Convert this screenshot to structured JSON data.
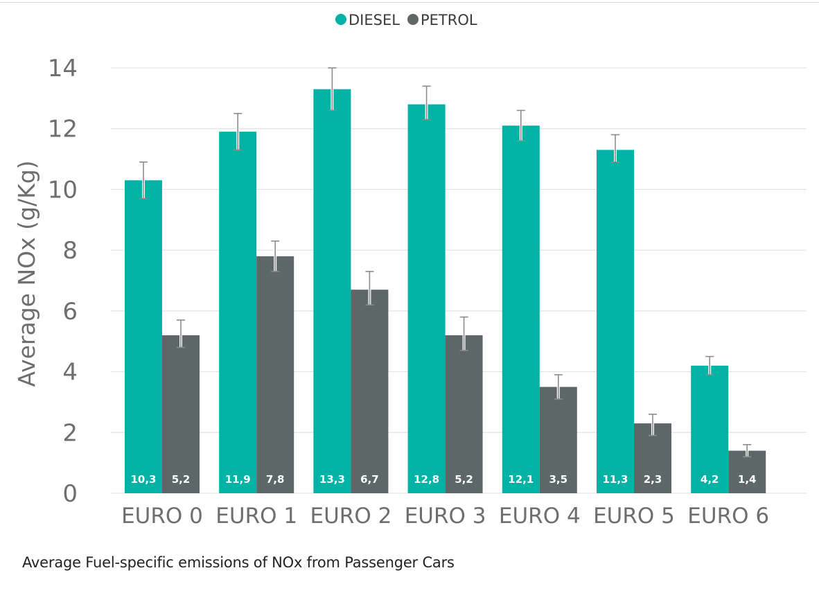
{
  "colors": {
    "diesel": "#00b3a4",
    "petrol": "#5e6767",
    "grid": "#e3e3e3",
    "axis_text": "#6e6e6e",
    "errorbar": "#8c8c8c",
    "data_label": "#ffffff",
    "caption": "#222222"
  },
  "chart_data": {
    "type": "bar",
    "categories": [
      "EURO 0",
      "EURO 1",
      "EURO 2",
      "EURO 3",
      "EURO 4",
      "EURO 5",
      "EURO 6"
    ],
    "series": [
      {
        "name": "DIESEL",
        "values": [
          10.3,
          11.9,
          13.3,
          12.8,
          12.1,
          11.3,
          4.2
        ],
        "labels": [
          "10,3",
          "11,9",
          "13,3",
          "12,8",
          "12,1",
          "11,3",
          "4,2"
        ],
        "error_low": [
          9.7,
          11.3,
          12.6,
          12.3,
          11.6,
          10.9,
          3.9
        ],
        "error_high": [
          10.9,
          12.5,
          14.0,
          13.4,
          12.6,
          11.8,
          4.5
        ],
        "color": "#00b3a4"
      },
      {
        "name": "PETROL",
        "values": [
          5.2,
          7.8,
          6.7,
          5.2,
          3.5,
          2.3,
          1.4
        ],
        "labels": [
          "5,2",
          "7,8",
          "6,7",
          "5,2",
          "3,5",
          "2,3",
          "1,4"
        ],
        "error_low": [
          4.8,
          7.3,
          6.2,
          4.7,
          3.1,
          1.9,
          1.2
        ],
        "error_high": [
          5.7,
          8.3,
          7.3,
          5.8,
          3.9,
          2.6,
          1.6
        ],
        "color": "#5e6767"
      }
    ],
    "ylabel": "Average NOx (g/Kg)",
    "xlabel": "",
    "ylim": [
      0,
      14
    ],
    "yticks": [
      0,
      2,
      4,
      6,
      8,
      10,
      12,
      14
    ],
    "grid": true,
    "legend_position": "top-center"
  },
  "caption": "Average Fuel-specific emissions of NOx from Passenger Cars"
}
